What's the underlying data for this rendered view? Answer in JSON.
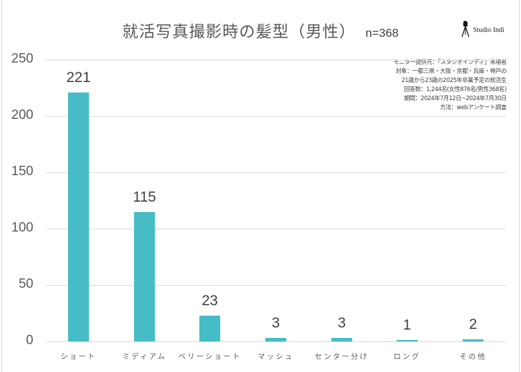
{
  "header": {
    "title": "就活写真撮影時の髪型（男性）",
    "sample_size": "n=368",
    "brand": "Studio Indi",
    "brand_icon": "camera-tripod-icon"
  },
  "note": {
    "lines": [
      "モニター提供元：「スタジオインディ」来場者",
      "対象：一都三県・大阪・京都・兵庫・神戸の",
      "21歳から23歳の2025年卒業予定の就活生",
      "回答数：1,244名(女性876名/男性368名)",
      "期間：2024年7月12日~2024年7月30日",
      "方法：webアンケート調査"
    ]
  },
  "colors": {
    "bar": "#46bcc6",
    "grid": "#d9d9d9",
    "text": "#404040"
  },
  "chart_data": {
    "type": "bar",
    "title": "就活写真撮影時の髪型（男性） n=368",
    "categories": [
      "ショート",
      "ミディアム",
      "ベリーショート",
      "マッシュ",
      "センター分け",
      "ロング",
      "その他"
    ],
    "values": [
      221,
      115,
      23,
      3,
      3,
      1,
      2
    ],
    "data_labels": [
      "221",
      "115",
      "23",
      "3",
      "3",
      "1",
      "2"
    ],
    "xlabel": "",
    "ylabel": "",
    "ylim": [
      0,
      250
    ],
    "yticks": [
      "0",
      "50",
      "100",
      "150",
      "200",
      "250"
    ],
    "grid": true,
    "legend": "none"
  }
}
